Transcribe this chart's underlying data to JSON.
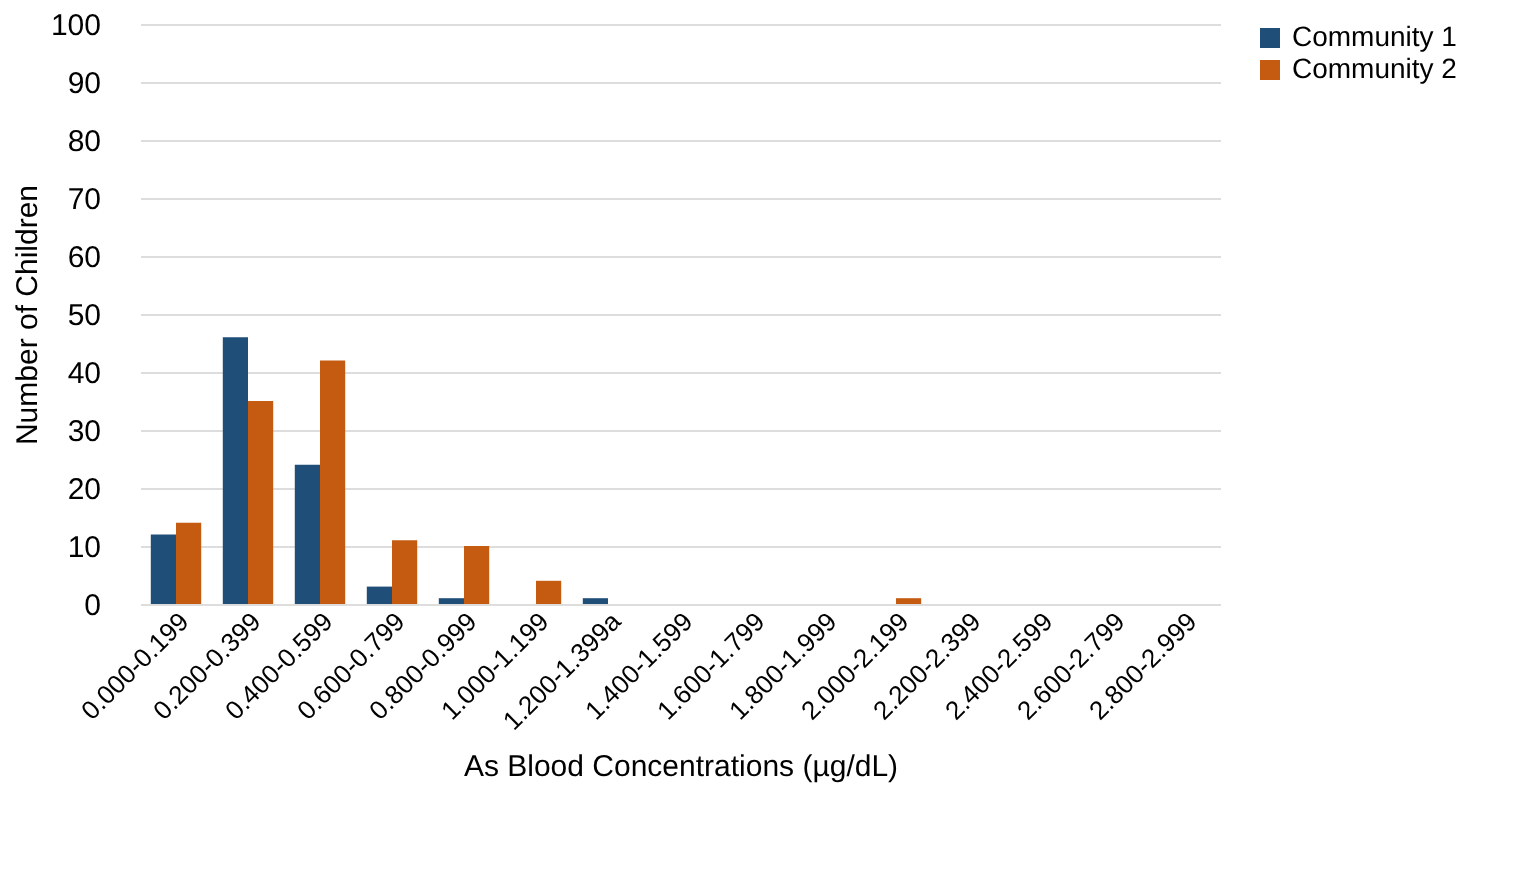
{
  "chart_data": {
    "type": "bar",
    "xlabel": "As Blood Concentrations (µg/dL)",
    "ylabel": "Number of Children",
    "categories": [
      "0.000-0.199",
      "0.200-0.399",
      "0.400-0.599",
      "0.600-0.799",
      "0.800-0.999",
      "1.000-1.199",
      "1.200-1.399a",
      "1.400-1.599",
      "1.600-1.799",
      "1.800-1.999",
      "2.000-2.199",
      "2.200-2.399",
      "2.400-2.599",
      "2.600-2.799",
      "2.800-2.999"
    ],
    "series": [
      {
        "name": "Community 1",
        "color": "#1f4e79",
        "values": [
          12,
          46,
          24,
          3,
          1,
          0,
          1,
          0,
          0,
          0,
          0,
          0,
          0,
          0,
          0
        ]
      },
      {
        "name": "Community 2",
        "color": "#c55a11",
        "values": [
          14,
          35,
          42,
          11,
          10,
          4,
          0,
          0,
          0,
          0,
          1,
          0,
          0,
          0,
          0
        ]
      }
    ],
    "ylim": [
      0,
      100
    ],
    "yticks": [
      0,
      10,
      20,
      30,
      40,
      50,
      60,
      70,
      80,
      90,
      100
    ],
    "grid": "y",
    "legend": "right"
  }
}
